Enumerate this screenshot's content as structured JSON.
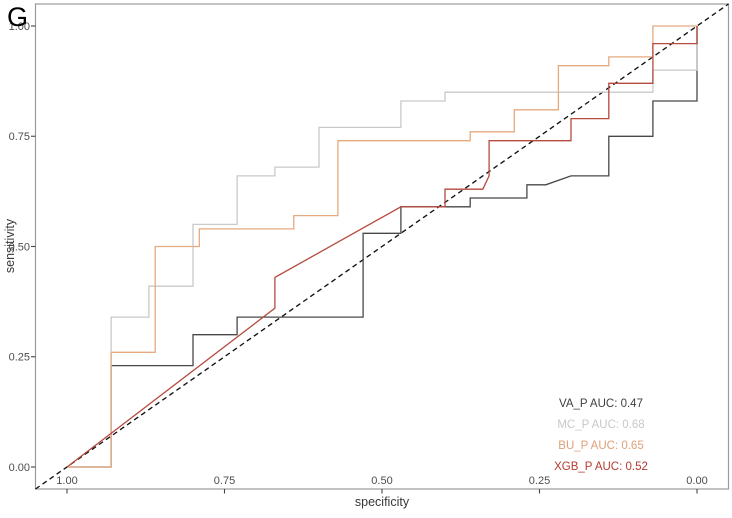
{
  "panel_label": "G",
  "chart_data": {
    "type": "line",
    "subtype": "roc-curves",
    "title": "",
    "xlabel": "specificity",
    "ylabel": "sensitivity",
    "x_axis_reversed": true,
    "grid": false,
    "xlim": [
      1.05,
      -0.05
    ],
    "ylim": [
      -0.05,
      1.05
    ],
    "x_ticks": [
      {
        "value": 1.0,
        "label": "1.00"
      },
      {
        "value": 0.75,
        "label": "0.75"
      },
      {
        "value": 0.5,
        "label": "0.50"
      },
      {
        "value": 0.25,
        "label": "0.25"
      },
      {
        "value": 0.0,
        "label": "0.00"
      }
    ],
    "y_ticks": [
      {
        "value": 0.0,
        "label": "0.00"
      },
      {
        "value": 0.25,
        "label": "0.25"
      },
      {
        "value": 0.5,
        "label": "0.50"
      },
      {
        "value": 0.75,
        "label": "0.75"
      },
      {
        "value": 1.0,
        "label": "1.00"
      }
    ],
    "diagonal_reference_line": {
      "style": "dashed",
      "color": "#111111",
      "from": [
        1.05,
        -0.05
      ],
      "to": [
        -0.05,
        1.05
      ]
    },
    "series": [
      {
        "name": "VA_P",
        "auc": 0.47,
        "color": "#484848",
        "points": [
          [
            1.0,
            0.0
          ],
          [
            0.93,
            0.0
          ],
          [
            0.93,
            0.23
          ],
          [
            0.8,
            0.23
          ],
          [
            0.8,
            0.3
          ],
          [
            0.73,
            0.3
          ],
          [
            0.73,
            0.34
          ],
          [
            0.53,
            0.34
          ],
          [
            0.53,
            0.53
          ],
          [
            0.47,
            0.53
          ],
          [
            0.47,
            0.59
          ],
          [
            0.36,
            0.59
          ],
          [
            0.36,
            0.61
          ],
          [
            0.27,
            0.61
          ],
          [
            0.27,
            0.64
          ],
          [
            0.24,
            0.64
          ],
          [
            0.2,
            0.66
          ],
          [
            0.14,
            0.66
          ],
          [
            0.14,
            0.75
          ],
          [
            0.07,
            0.75
          ],
          [
            0.07,
            0.83
          ],
          [
            0.0,
            0.83
          ],
          [
            0.0,
            1.0
          ]
        ]
      },
      {
        "name": "MC_P",
        "auc": 0.68,
        "color": "#c9c9c9",
        "points": [
          [
            1.0,
            0.0
          ],
          [
            0.93,
            0.0
          ],
          [
            0.93,
            0.34
          ],
          [
            0.87,
            0.34
          ],
          [
            0.87,
            0.41
          ],
          [
            0.8,
            0.41
          ],
          [
            0.8,
            0.55
          ],
          [
            0.73,
            0.55
          ],
          [
            0.73,
            0.66
          ],
          [
            0.67,
            0.66
          ],
          [
            0.67,
            0.68
          ],
          [
            0.6,
            0.68
          ],
          [
            0.6,
            0.77
          ],
          [
            0.47,
            0.77
          ],
          [
            0.47,
            0.83
          ],
          [
            0.4,
            0.83
          ],
          [
            0.4,
            0.85
          ],
          [
            0.07,
            0.85
          ],
          [
            0.07,
            0.9
          ],
          [
            0.0,
            0.9
          ],
          [
            0.0,
            1.0
          ]
        ]
      },
      {
        "name": "BU_P",
        "auc": 0.65,
        "color": "#e5aa80",
        "points": [
          [
            1.0,
            0.0
          ],
          [
            0.93,
            0.0
          ],
          [
            0.93,
            0.26
          ],
          [
            0.86,
            0.26
          ],
          [
            0.86,
            0.5
          ],
          [
            0.79,
            0.5
          ],
          [
            0.79,
            0.54
          ],
          [
            0.64,
            0.54
          ],
          [
            0.64,
            0.57
          ],
          [
            0.57,
            0.57
          ],
          [
            0.57,
            0.74
          ],
          [
            0.36,
            0.74
          ],
          [
            0.36,
            0.76
          ],
          [
            0.29,
            0.76
          ],
          [
            0.29,
            0.81
          ],
          [
            0.22,
            0.81
          ],
          [
            0.22,
            0.91
          ],
          [
            0.14,
            0.91
          ],
          [
            0.14,
            0.93
          ],
          [
            0.07,
            0.93
          ],
          [
            0.07,
            1.0
          ],
          [
            0.0,
            1.0
          ]
        ]
      },
      {
        "name": "XGB_P",
        "auc": 0.52,
        "color": "#b54a3d",
        "points": [
          [
            1.0,
            0.0
          ],
          [
            0.67,
            0.36
          ],
          [
            0.67,
            0.43
          ],
          [
            0.47,
            0.59
          ],
          [
            0.4,
            0.59
          ],
          [
            0.4,
            0.63
          ],
          [
            0.34,
            0.63
          ],
          [
            0.33,
            0.66
          ],
          [
            0.33,
            0.74
          ],
          [
            0.2,
            0.74
          ],
          [
            0.2,
            0.79
          ],
          [
            0.14,
            0.79
          ],
          [
            0.14,
            0.87
          ],
          [
            0.07,
            0.87
          ],
          [
            0.07,
            0.96
          ],
          [
            0.0,
            0.96
          ],
          [
            0.0,
            1.0
          ]
        ]
      }
    ],
    "legend": {
      "position": "bottom-right",
      "entries": [
        {
          "label": "VA_P AUC: 0.47",
          "color": "#3f3f3f"
        },
        {
          "label": "MC_P AUC: 0.68",
          "color": "#c8c8c8"
        },
        {
          "label": "BU_P AUC: 0.65",
          "color": "#dfa076"
        },
        {
          "label": "XGB_P AUC: 0.52",
          "color": "#b53a2d"
        }
      ]
    }
  }
}
